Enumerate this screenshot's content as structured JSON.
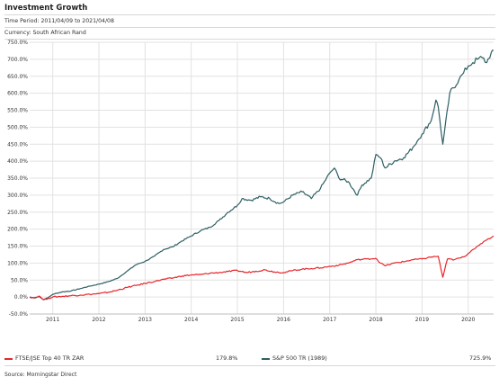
{
  "header": {
    "title": "Investment Growth",
    "time_period": "Time Period: 2011/04/09 to 2021/04/08",
    "currency": "Currency: South African Rand"
  },
  "legend": [
    {
      "name": "FTSE/JSE Top 40 TR ZAR",
      "value": "179.8%",
      "color": "#e8262b"
    },
    {
      "name": "S&P 500 TR (1989)",
      "value": "725.9%",
      "color": "#2d5f63"
    }
  ],
  "footer": {
    "source": "Source: Morningstar Direct"
  },
  "chart_data": {
    "type": "line",
    "ylim": [
      -50,
      750
    ],
    "xlim": [
      2010.5,
      2020.55
    ],
    "yticks": [
      "-50.0%",
      "0.0%",
      "50.0%",
      "100.0%",
      "150.0%",
      "200.0%",
      "250.0%",
      "300.0%",
      "350.0%",
      "400.0%",
      "450.0%",
      "500.0%",
      "550.0%",
      "600.0%",
      "650.0%",
      "700.0%",
      "750.0%"
    ],
    "ytick_values": [
      -50,
      0,
      50,
      100,
      150,
      200,
      250,
      300,
      350,
      400,
      450,
      500,
      550,
      600,
      650,
      700,
      750
    ],
    "xticks": [
      "2011",
      "2012",
      "2013",
      "2014",
      "2015",
      "2016",
      "2017",
      "2018",
      "2019",
      "2020"
    ],
    "xtick_values": [
      2011,
      2012,
      2013,
      2014,
      2015,
      2016,
      2017,
      2018,
      2019,
      2020
    ],
    "grid": true,
    "series": [
      {
        "name": "S&P 500 TR (1989)",
        "color": "#2d5f63",
        "x": [
          2010.5,
          2010.6,
          2010.7,
          2010.8,
          2010.9,
          2011.0,
          2011.2,
          2011.4,
          2011.6,
          2011.8,
          2012.0,
          2012.2,
          2012.4,
          2012.6,
          2012.8,
          2013.0,
          2013.2,
          2013.4,
          2013.6,
          2013.8,
          2014.0,
          2014.2,
          2014.4,
          2014.6,
          2014.8,
          2015.0,
          2015.1,
          2015.3,
          2015.5,
          2015.7,
          2015.9,
          2016.0,
          2016.2,
          2016.4,
          2016.6,
          2016.8,
          2017.0,
          2017.1,
          2017.2,
          2017.4,
          2017.6,
          2017.7,
          2017.9,
          2018.0,
          2018.1,
          2018.2,
          2018.4,
          2018.6,
          2018.8,
          2018.9,
          2019.0,
          2019.2,
          2019.3,
          2019.35,
          2019.45,
          2019.6,
          2019.8,
          2019.9,
          2020.0,
          2020.1,
          2020.2,
          2020.3,
          2020.4,
          2020.5,
          2020.55
        ],
        "values": [
          0,
          -3,
          2,
          -8,
          -2,
          8,
          15,
          18,
          25,
          32,
          38,
          45,
          55,
          75,
          95,
          105,
          120,
          140,
          148,
          165,
          180,
          195,
          205,
          225,
          250,
          270,
          290,
          285,
          295,
          290,
          275,
          280,
          300,
          310,
          290,
          320,
          365,
          380,
          350,
          340,
          300,
          330,
          350,
          420,
          410,
          380,
          400,
          410,
          440,
          460,
          480,
          520,
          580,
          560,
          450,
          600,
          640,
          660,
          680,
          690,
          700,
          705,
          690,
          720,
          726
        ]
      },
      {
        "name": "FTSE/JSE Top 40 TR ZAR",
        "color": "#e8262b",
        "x": [
          2010.5,
          2010.6,
          2010.7,
          2010.8,
          2010.9,
          2011.0,
          2011.2,
          2011.4,
          2011.6,
          2011.8,
          2012.0,
          2012.2,
          2012.4,
          2012.6,
          2012.8,
          2013.0,
          2013.2,
          2013.4,
          2013.6,
          2013.8,
          2014.0,
          2014.2,
          2014.4,
          2014.6,
          2014.8,
          2015.0,
          2015.2,
          2015.4,
          2015.6,
          2015.8,
          2016.0,
          2016.2,
          2016.4,
          2016.6,
          2016.8,
          2017.0,
          2017.2,
          2017.4,
          2017.6,
          2017.8,
          2018.0,
          2018.1,
          2018.2,
          2018.4,
          2018.6,
          2018.8,
          2019.0,
          2019.2,
          2019.35,
          2019.45,
          2019.55,
          2019.7,
          2019.9,
          2020.0,
          2020.1,
          2020.2,
          2020.3,
          2020.4,
          2020.5,
          2020.55
        ],
        "values": [
          0,
          -2,
          3,
          -8,
          -4,
          0,
          2,
          4,
          6,
          8,
          10,
          14,
          20,
          28,
          34,
          40,
          46,
          52,
          56,
          62,
          65,
          66,
          70,
          72,
          75,
          78,
          72,
          76,
          80,
          74,
          72,
          78,
          82,
          84,
          86,
          90,
          94,
          100,
          110,
          112,
          114,
          100,
          92,
          100,
          104,
          110,
          112,
          118,
          120,
          58,
          112,
          110,
          118,
          128,
          140,
          150,
          158,
          168,
          175,
          180
        ]
      }
    ]
  }
}
